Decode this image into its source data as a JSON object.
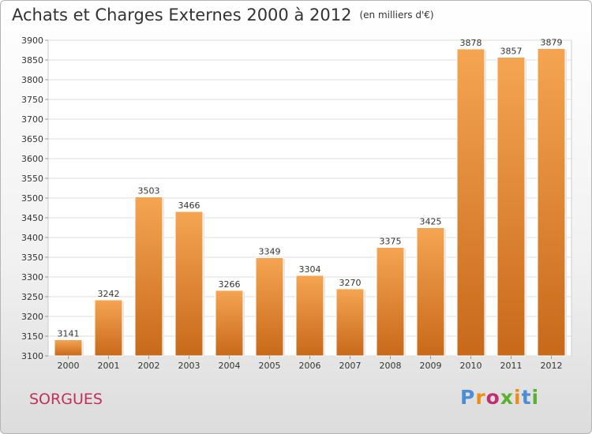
{
  "header": {
    "title": "Achats et Charges Externes 2000 à 2012",
    "unit": "(en milliers d'€)"
  },
  "footer": {
    "commune": "SORGUES",
    "logo": {
      "letters": [
        "P",
        "r",
        "o",
        "x",
        "i",
        "t",
        "i"
      ],
      "colors": [
        "#4a8fd6",
        "#f08c1a",
        "#c03070",
        "#5ab030",
        "#f08c1a",
        "#4a8fd6",
        "#5ab030"
      ]
    }
  },
  "chart_data": {
    "type": "bar",
    "categories": [
      "2000",
      "2001",
      "2002",
      "2003",
      "2004",
      "2005",
      "2006",
      "2007",
      "2008",
      "2009",
      "2010",
      "2011",
      "2012"
    ],
    "values": [
      3141,
      3242,
      3503,
      3466,
      3266,
      3349,
      3304,
      3270,
      3375,
      3425,
      3878,
      3857,
      3879
    ],
    "title": "Achats et Charges Externes 2000 à 2012",
    "xlabel": "",
    "ylabel": "",
    "ylim": [
      3100,
      3900
    ],
    "yticks": [
      3100,
      3150,
      3200,
      3250,
      3300,
      3350,
      3400,
      3450,
      3500,
      3550,
      3600,
      3650,
      3700,
      3750,
      3800,
      3850,
      3900
    ],
    "grid": true,
    "colors": {
      "bar_light": "#f5a552",
      "bar_dark": "#c8691a",
      "grid": "#dddddd",
      "axis": "#999999"
    }
  }
}
